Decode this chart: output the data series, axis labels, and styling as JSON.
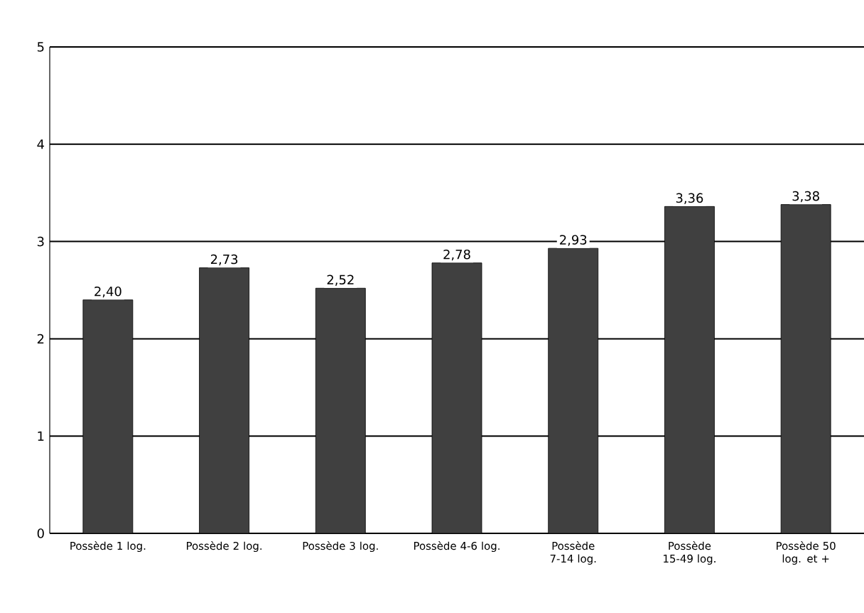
{
  "chart_data": {
    "type": "bar",
    "categories": [
      "Possède 1 log.",
      "Possède 2 log.",
      "Possède 3 log.",
      "Possède 4-6 log.",
      "Possède 7-14 log.",
      "Possède 15-49 log.",
      "Possède 50 log. et +"
    ],
    "values": [
      2.4,
      2.73,
      2.52,
      2.78,
      2.93,
      3.36,
      3.38
    ],
    "value_labels": [
      "2,40",
      "2,73",
      "2,52",
      "2,78",
      "2,93",
      "3,36",
      "3,38"
    ],
    "color": "#404040",
    "ylim": [
      0,
      5
    ],
    "yticks": [
      0,
      1,
      2,
      3,
      4,
      5
    ],
    "grid": "y"
  }
}
